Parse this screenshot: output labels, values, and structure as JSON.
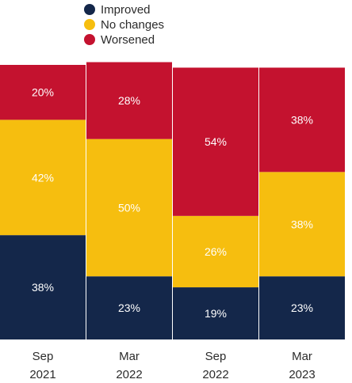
{
  "chart_data": {
    "type": "bar",
    "stacked": true,
    "normalized_percent": true,
    "categories": [
      [
        "Sep",
        "2021"
      ],
      [
        "Mar",
        "2022"
      ],
      [
        "Sep",
        "2022"
      ],
      [
        "Mar",
        "2023"
      ]
    ],
    "series": [
      {
        "name": "Improved",
        "values": [
          38,
          23,
          19,
          23
        ],
        "labels": [
          "38%",
          "23%",
          "19%",
          "23%"
        ],
        "color": "#14274a"
      },
      {
        "name": "No changes",
        "values": [
          42,
          50,
          26,
          38
        ],
        "labels": [
          "42%",
          "50%",
          "26%",
          "38%"
        ],
        "color": "#f6be0f"
      },
      {
        "name": "Worsened",
        "values": [
          20,
          28,
          54,
          38
        ],
        "labels": [
          "20%",
          "28%",
          "54%",
          "38%"
        ],
        "color": "#c4122f"
      }
    ],
    "legend": {
      "placement": "top-center",
      "entries": [
        "Improved",
        "No changes",
        "Worsened"
      ]
    },
    "ylim": [
      0,
      100
    ],
    "grid": false,
    "title": "",
    "xlabel": "",
    "ylabel": ""
  }
}
